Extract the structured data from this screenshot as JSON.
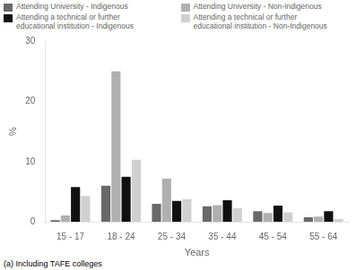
{
  "chart_data": {
    "type": "bar",
    "categories": [
      "15 - 17",
      "18 - 24",
      "25 - 34",
      "35 - 44",
      "45 - 54",
      "55 - 64"
    ],
    "series": [
      {
        "name": "Attending University - Indigenous",
        "color": "#696969",
        "values": [
          0.3,
          6.0,
          3.0,
          2.6,
          1.8,
          0.8
        ]
      },
      {
        "name": "Attending University - Non-Indigenous",
        "color": "#b0b0b0",
        "values": [
          1.1,
          25.0,
          7.2,
          2.8,
          1.5,
          0.9
        ]
      },
      {
        "name": "Attending a technical or further\neducational institution - Indigenous",
        "color": "#111111",
        "values": [
          5.8,
          7.5,
          3.5,
          3.6,
          2.7,
          1.8
        ]
      },
      {
        "name": "Attending a technical or further\neducational institution - Non-Indigenous",
        "color": "#d0d0d0",
        "values": [
          4.3,
          10.3,
          3.8,
          2.3,
          1.6,
          0.5
        ]
      }
    ],
    "xlabel": "Years",
    "ylabel": "%",
    "annotations": [
      "(a) Including TAFE colleges"
    ],
    "ylim": [
      0,
      30
    ],
    "yticks": [
      0,
      10,
      20,
      30
    ],
    "grid": false,
    "legend": "top"
  }
}
